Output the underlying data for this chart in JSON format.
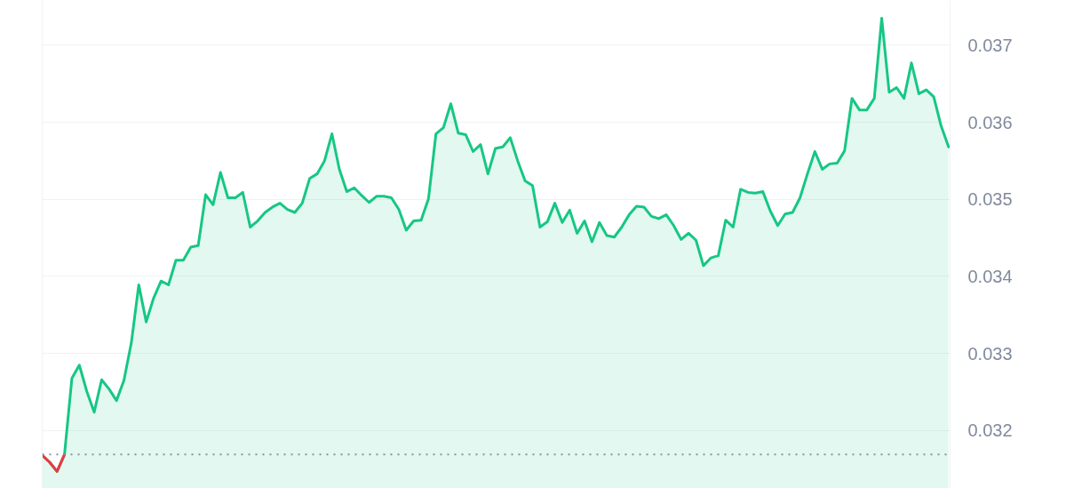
{
  "chart_data": {
    "type": "area",
    "categories": [
      null,
      null,
      null,
      null,
      null,
      null,
      null,
      null,
      null,
      null,
      null,
      null,
      null,
      null,
      null,
      null,
      null,
      null,
      null,
      null,
      null,
      null,
      null,
      null,
      null,
      null,
      null,
      null,
      null,
      null,
      null,
      null,
      null,
      null,
      null,
      null,
      null,
      null,
      null,
      null,
      null,
      null,
      null,
      null,
      null,
      null,
      null,
      null,
      null,
      null,
      null,
      null,
      null,
      null,
      null,
      null,
      null,
      null,
      null,
      null,
      null,
      null,
      null,
      null,
      null,
      null,
      null,
      null,
      null,
      null,
      null,
      null,
      null,
      null,
      null,
      null,
      null,
      null,
      null,
      null,
      null,
      null,
      null,
      null,
      null,
      null,
      null,
      null,
      null,
      null,
      null,
      null,
      null,
      null,
      null,
      null,
      null,
      null,
      null,
      null,
      null,
      null,
      null,
      null,
      null,
      null,
      null,
      null,
      null,
      null,
      null,
      null,
      null,
      null,
      null,
      null,
      null,
      null,
      null,
      null,
      null,
      null,
      null
    ],
    "ylim": [
      0.03125,
      0.03758
    ],
    "yticks": [
      0.032,
      0.033,
      0.034,
      0.035,
      0.036,
      0.037
    ],
    "grid": "y",
    "tick_labels": "y",
    "series": [
      {
        "color": "#16c784",
        "values": [
          0.03168,
          0.03159,
          0.03147,
          0.03169,
          0.03268,
          0.03285,
          0.03251,
          0.03224,
          0.03266,
          0.03254,
          0.03239,
          0.03265,
          0.03314,
          0.03389,
          0.03341,
          0.03372,
          0.03394,
          0.03389,
          0.03421,
          0.03421,
          0.03438,
          0.0344,
          0.03506,
          0.03493,
          0.03535,
          0.03502,
          0.03502,
          0.03509,
          0.03464,
          0.03472,
          0.03483,
          0.0349,
          0.03495,
          0.03487,
          0.03483,
          0.03495,
          0.03527,
          0.03533,
          0.0355,
          0.03585,
          0.03539,
          0.0351,
          0.03515,
          0.03505,
          0.03496,
          0.03504,
          0.03504,
          0.03502,
          0.03487,
          0.0346,
          0.03472,
          0.03473,
          0.03501,
          0.03585,
          0.03593,
          0.03624,
          0.03586,
          0.03584,
          0.03562,
          0.03571,
          0.03533,
          0.03566,
          0.03568,
          0.0358,
          0.0355,
          0.03524,
          0.03518,
          0.03464,
          0.03471,
          0.03495,
          0.0347,
          0.03486,
          0.03456,
          0.03472,
          0.03445,
          0.0347,
          0.03453,
          0.03451,
          0.03464,
          0.0348,
          0.03491,
          0.0349,
          0.03478,
          0.03475,
          0.0348,
          0.03466,
          0.03448,
          0.03456,
          0.03447,
          0.03414,
          0.03424,
          0.03427,
          0.03473,
          0.03464,
          0.03513,
          0.03509,
          0.03508,
          0.0351,
          0.03485,
          0.03466,
          0.03481,
          0.03483,
          0.03502,
          0.03533,
          0.03562,
          0.03539,
          0.03546,
          0.03547,
          0.03563,
          0.03631,
          0.03616,
          0.03616,
          0.03631,
          0.03735,
          0.03639,
          0.03645,
          0.03631,
          0.03677,
          0.03637,
          0.03642,
          0.03633,
          0.03595,
          0.03568
        ]
      },
      {
        "type": "line",
        "color": "#ea3943",
        "values": [
          0.03168,
          0.03159,
          0.03147,
          0.03169,
          null,
          null,
          null,
          null,
          null,
          null,
          null,
          null,
          null,
          null,
          null,
          null,
          null,
          null,
          null,
          null,
          null,
          null,
          null,
          null,
          null,
          null,
          null,
          null,
          null,
          null,
          null,
          null,
          null,
          null,
          null,
          null,
          null,
          null,
          null,
          null,
          null,
          null,
          null,
          null,
          null,
          null,
          null,
          null,
          null,
          null,
          null,
          null,
          null,
          null,
          null,
          null,
          null,
          null,
          null,
          null,
          null,
          null,
          null,
          null,
          null,
          null,
          null,
          null,
          null,
          null,
          null,
          null,
          null,
          null,
          null,
          null,
          null,
          null,
          null,
          null,
          null,
          null,
          null,
          null,
          null,
          null,
          null,
          null,
          null,
          null,
          null,
          null,
          null,
          null,
          null,
          null,
          null,
          null,
          null,
          null,
          null,
          null,
          null,
          null,
          null,
          null,
          null,
          null,
          null,
          null,
          null,
          null,
          null,
          null,
          null,
          null,
          null,
          null,
          null,
          null,
          null,
          null,
          null
        ]
      }
    ],
    "ref_lines": [
      {
        "axis": "y",
        "value": 0.03169,
        "color": "#8c929c",
        "line_style": "dotted"
      }
    ]
  }
}
